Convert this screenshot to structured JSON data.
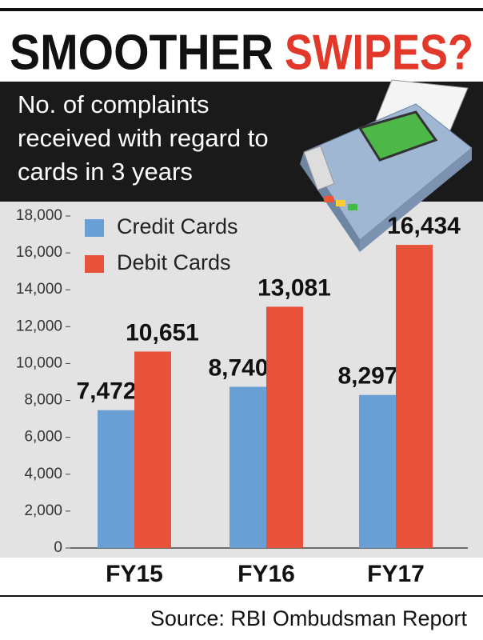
{
  "chart_data": {
    "type": "bar",
    "title": [
      "SMOOTHER",
      "SWIPES?"
    ],
    "subtitle": "No. of complaints received with regard to cards in 3 years",
    "source": "Source: RBI Ombudsman Report",
    "categories": [
      "FY15",
      "FY16",
      "FY17"
    ],
    "series": [
      {
        "name": "Credit Cards",
        "color": "#6a9fd6",
        "values": [
          7472,
          8740,
          8297
        ],
        "value_labels": [
          "7,472",
          "8,740",
          "8,297"
        ]
      },
      {
        "name": "Debit Cards",
        "color": "#e8513a",
        "values": [
          10651,
          13081,
          16434
        ],
        "value_labels": [
          "10,651",
          "13,081",
          "16,434"
        ]
      }
    ],
    "ylim": [
      0,
      18000
    ],
    "yticks": [
      0,
      {
        "value": 2000,
        "label": "2,000"
      },
      {
        "value": 4000,
        "label": "4,000"
      },
      {
        "value": 6000,
        "label": "6,000"
      },
      {
        "value": 8000,
        "label": "8,000"
      },
      {
        "value": 10000,
        "label": "10,000"
      },
      {
        "value": 12000,
        "label": "12,000"
      },
      {
        "value": 14000,
        "label": "14,000"
      },
      {
        "value": 16000,
        "label": "16,000"
      },
      {
        "value": 18000,
        "label": "18,000"
      }
    ]
  }
}
